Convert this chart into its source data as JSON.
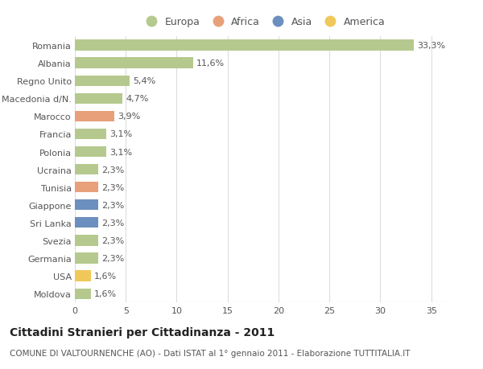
{
  "countries": [
    "Romania",
    "Albania",
    "Regno Unito",
    "Macedonia d/N.",
    "Marocco",
    "Francia",
    "Polonia",
    "Ucraina",
    "Tunisia",
    "Giappone",
    "Sri Lanka",
    "Svezia",
    "Germania",
    "USA",
    "Moldova"
  ],
  "values": [
    33.3,
    11.6,
    5.4,
    4.7,
    3.9,
    3.1,
    3.1,
    2.3,
    2.3,
    2.3,
    2.3,
    2.3,
    2.3,
    1.6,
    1.6
  ],
  "labels": [
    "33,3%",
    "11,6%",
    "5,4%",
    "4,7%",
    "3,9%",
    "3,1%",
    "3,1%",
    "2,3%",
    "2,3%",
    "2,3%",
    "2,3%",
    "2,3%",
    "2,3%",
    "1,6%",
    "1,6%"
  ],
  "continent": [
    "Europa",
    "Europa",
    "Europa",
    "Europa",
    "Africa",
    "Europa",
    "Europa",
    "Europa",
    "Africa",
    "Asia",
    "Asia",
    "Europa",
    "Europa",
    "America",
    "Europa"
  ],
  "colors": {
    "Europa": "#b5c98e",
    "Africa": "#e8a07a",
    "Asia": "#6b8fbf",
    "America": "#f0c85a"
  },
  "xlim": [
    0,
    37
  ],
  "xticks": [
    0,
    5,
    10,
    15,
    20,
    25,
    30,
    35
  ],
  "title": "Cittadini Stranieri per Cittadinanza - 2011",
  "subtitle": "COMUNE DI VALTOURNENCHE (AO) - Dati ISTAT al 1° gennaio 2011 - Elaborazione TUTTITALIA.IT",
  "bg_color": "#ffffff",
  "grid_color": "#dddddd",
  "bar_height": 0.6,
  "label_fontsize": 8,
  "tick_fontsize": 8,
  "title_fontsize": 10,
  "subtitle_fontsize": 7.5,
  "legend_order": [
    "Europa",
    "Africa",
    "Asia",
    "America"
  ]
}
